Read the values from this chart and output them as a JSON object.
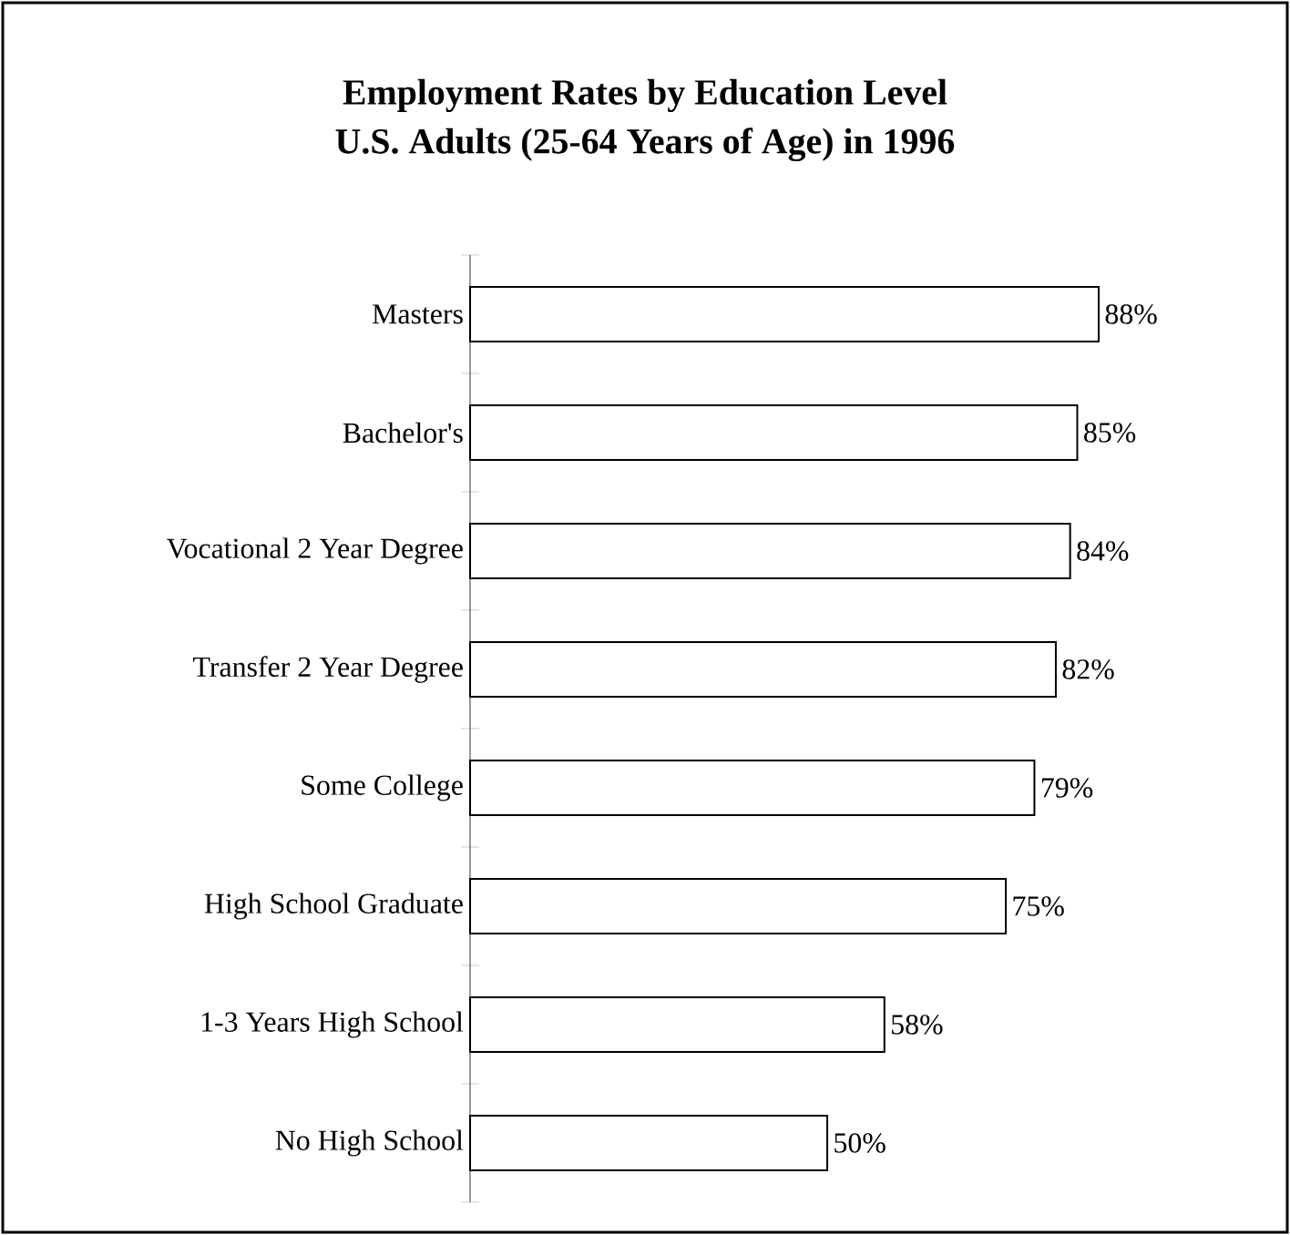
{
  "chart_data": {
    "type": "bar",
    "orientation": "horizontal",
    "title": "Employment Rates by Education Level",
    "subtitle": "U.S. Adults (25-64 Years of Age) in 1996",
    "categories": [
      "Masters",
      "Bachelor's",
      "Vocational 2 Year Degree",
      "Transfer 2 Year Degree",
      "Some College",
      "High School Graduate",
      "1-3 Years High School",
      "No High School"
    ],
    "values": [
      88,
      85,
      84,
      82,
      79,
      75,
      58,
      50
    ],
    "value_labels": [
      "88%",
      "85%",
      "84%",
      "82%",
      "79%",
      "75%",
      "58%",
      "50%"
    ],
    "color": "#ffffff",
    "grid": false
  }
}
